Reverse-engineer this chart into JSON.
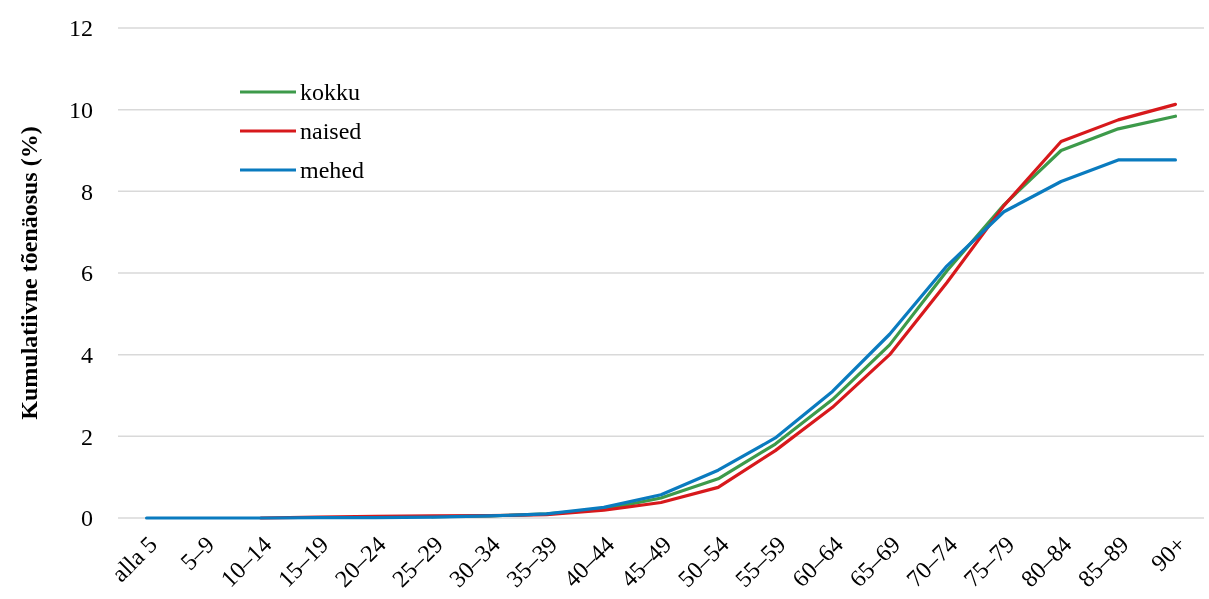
{
  "chart_data": {
    "type": "line",
    "ylabel": "Kumulatiivne tõenäosus (%)",
    "categories": [
      "alla 5",
      "5–9",
      "10–14",
      "15–19",
      "20–24",
      "25–29",
      "30–34",
      "35–39",
      "40–44",
      "45–49",
      "50–54",
      "55–59",
      "60–64",
      "65–69",
      "70–74",
      "75–79",
      "80–84",
      "85–89",
      "90+"
    ],
    "series": [
      {
        "name": "kokku",
        "color": "#3d9a4a",
        "values": [
          null,
          null,
          null,
          null,
          null,
          0.03,
          0.05,
          0.1,
          0.21,
          0.49,
          0.96,
          1.81,
          2.9,
          4.24,
          6.05,
          7.67,
          9.0,
          9.53,
          9.84
        ]
      },
      {
        "name": "naised",
        "color": "#d7191c",
        "values": [
          null,
          null,
          0,
          0.02,
          0.04,
          0.05,
          0.06,
          0.08,
          0.19,
          0.38,
          0.75,
          1.65,
          2.71,
          4.0,
          5.76,
          7.65,
          9.22,
          9.75,
          10.13
        ]
      },
      {
        "name": "mehed",
        "color": "#0a7bbf",
        "values": [
          0,
          0,
          0,
          0.01,
          0.01,
          0.02,
          0.05,
          0.1,
          0.26,
          0.57,
          1.17,
          1.96,
          3.1,
          4.5,
          6.17,
          7.5,
          8.24,
          8.77,
          8.77
        ]
      }
    ],
    "ylim": [
      0,
      12
    ],
    "yticks": [
      0,
      2,
      4,
      6,
      8,
      10,
      12
    ],
    "grid": "y",
    "legend": "top left",
    "line_style": "solid",
    "marker": "none"
  }
}
